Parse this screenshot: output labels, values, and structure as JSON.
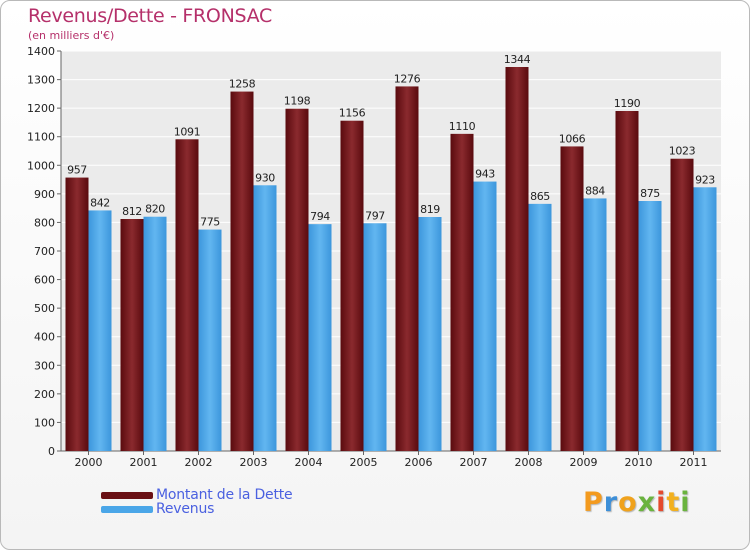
{
  "chart_data": {
    "type": "bar",
    "title": "Revenus/Dette - FRONSAC",
    "subtitle": "(en milliers d'€)",
    "categories": [
      "2000",
      "2001",
      "2002",
      "2003",
      "2004",
      "2005",
      "2006",
      "2007",
      "2008",
      "2009",
      "2010",
      "2011"
    ],
    "series": [
      {
        "name": "Montant de la Dette",
        "color": "#6a1014",
        "values": [
          957,
          812,
          1091,
          1258,
          1198,
          1156,
          1276,
          1110,
          1344,
          1066,
          1190,
          1023
        ]
      },
      {
        "name": "Revenus",
        "color": "#4aa6e8",
        "values": [
          842,
          820,
          775,
          930,
          794,
          797,
          819,
          943,
          865,
          884,
          875,
          923
        ]
      }
    ],
    "ylim": [
      0,
      1400
    ],
    "yticks": [
      0,
      100,
      200,
      300,
      400,
      500,
      600,
      700,
      800,
      900,
      1000,
      1100,
      1200,
      1300,
      1400
    ],
    "grid": true,
    "legend": "bottom-left"
  },
  "brand": {
    "letters": [
      "P",
      "r",
      "o",
      "x",
      "i",
      "t",
      "i"
    ],
    "colors": [
      "#f39a1e",
      "#3d8fd8",
      "#f0a21c",
      "#6ab33e",
      "#e44a2e",
      "#f2b01e",
      "#6ab33e"
    ]
  }
}
